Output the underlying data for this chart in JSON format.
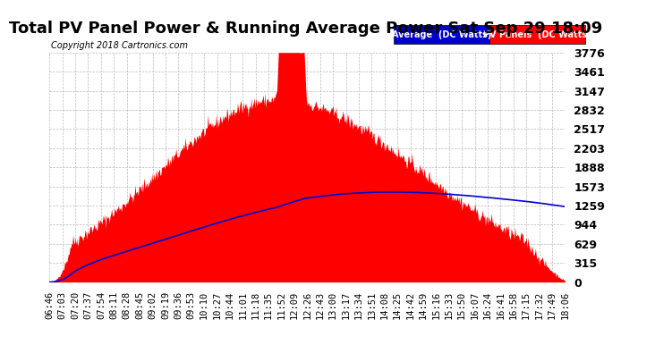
{
  "title": "Total PV Panel Power & Running Average Power Sat Sep 29 18:09",
  "copyright": "Copyright 2018 Cartronics.com",
  "legend_avg": "Average  (DC Watts)",
  "legend_pv": "PV Panels  (DC Watts)",
  "y_max": 3776.0,
  "y_ticks": [
    0.0,
    314.7,
    629.3,
    944.0,
    1258.7,
    1573.3,
    1888.0,
    2202.7,
    2517.3,
    2832.0,
    3146.7,
    3461.3,
    3776.0
  ],
  "bg_color": "#ffffff",
  "plot_bg_color": "#ffffff",
  "grid_color": "#aaaaaa",
  "pv_color": "#ff0000",
  "avg_color": "#0000cc",
  "title_fontsize": 13,
  "tick_fontsize": 7.5
}
